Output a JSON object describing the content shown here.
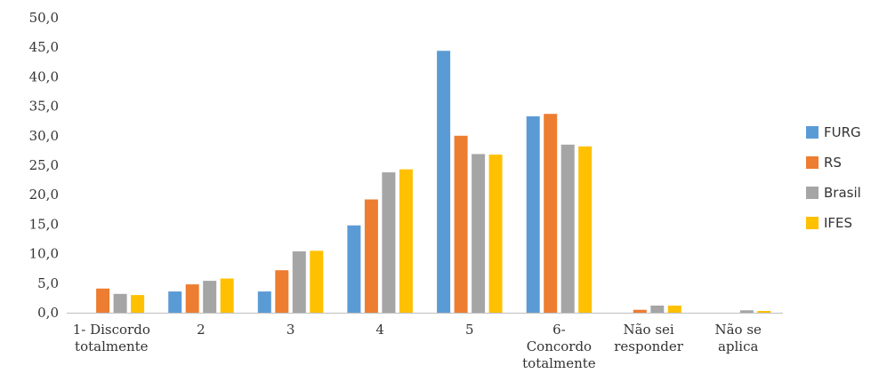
{
  "chart_data": {
    "type": "bar",
    "title": "",
    "xlabel": "",
    "ylabel": "",
    "ylim": [
      0,
      50
    ],
    "ytick_step": 5,
    "ytick_labels": [
      "0,0",
      "5,0",
      "10,0",
      "15,0",
      "20,0",
      "25,0",
      "30,0",
      "35,0",
      "40,0",
      "45,0",
      "50,0"
    ],
    "grid": false,
    "legend_position": "right",
    "categories": [
      [
        "1- Discordo",
        "totalmente"
      ],
      [
        "2"
      ],
      [
        "3"
      ],
      [
        "4"
      ],
      [
        "5"
      ],
      [
        "6-",
        "Concordo",
        "totalmente"
      ],
      [
        "Não sei",
        "responder"
      ],
      [
        "Não se",
        "aplica"
      ]
    ],
    "series": [
      {
        "name": "FURG",
        "color": "#5B9BD5",
        "values": [
          0.0,
          3.6,
          3.6,
          14.8,
          44.4,
          33.3,
          0.0,
          0.0
        ]
      },
      {
        "name": "RS",
        "color": "#ED7D31",
        "values": [
          4.1,
          4.8,
          7.2,
          19.2,
          30.0,
          33.7,
          0.5,
          0.0
        ]
      },
      {
        "name": "Brasil",
        "color": "#A5A5A5",
        "values": [
          3.2,
          5.4,
          10.4,
          23.8,
          26.9,
          28.5,
          1.2,
          0.4
        ]
      },
      {
        "name": "IFES",
        "color": "#FFC000",
        "values": [
          3.0,
          5.8,
          10.5,
          24.3,
          26.8,
          28.2,
          1.2,
          0.3
        ]
      }
    ]
  }
}
